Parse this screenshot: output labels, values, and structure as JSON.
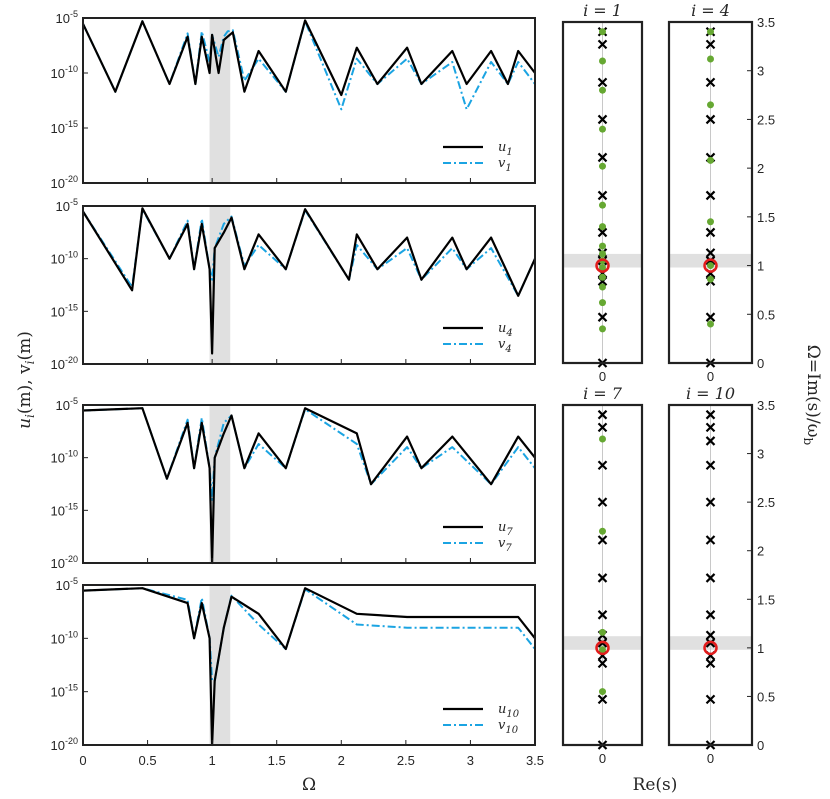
{
  "colors": {
    "u": "#000000",
    "v": "#1ba4e2",
    "shade": "#e0e0e0",
    "pole_x": "#000000",
    "pole_dot": "#66a832",
    "ring": "#e21c1c"
  },
  "chart_data": [
    {
      "type": "line",
      "panel": "u1",
      "x": [
        0,
        0.25,
        0.46,
        0.67,
        0.81,
        0.87,
        0.92,
        0.98,
        1.0,
        1.05,
        1.09,
        1.12,
        1.16,
        1.25,
        1.36,
        1.57,
        1.72,
        2.0,
        2.12,
        2.28,
        2.51,
        2.62,
        2.86,
        2.97,
        3.16,
        3.29,
        3.37,
        3.5
      ],
      "series": [
        {
          "name": "u_1",
          "values": [
            3e-06,
            2e-12,
            5e-06,
            1e-11,
            2e-07,
            1e-11,
            2e-07,
            1e-10,
            3e-07,
            1e-10,
            1e-07,
            2e-07,
            5e-07,
            2e-12,
            1e-08,
            2e-12,
            6e-06,
            1e-12,
            2e-08,
            1e-11,
            2e-08,
            1e-11,
            1e-08,
            1e-11,
            1e-08,
            1e-11,
            1e-08,
            1e-10
          ]
        },
        {
          "name": "v_1",
          "values": [
            3e-06,
            2e-12,
            5e-06,
            1e-11,
            4e-07,
            1e-11,
            6e-07,
            1e-09,
            3e-07,
            3e-09,
            2e-07,
            6e-07,
            8e-07,
            2e-11,
            2e-09,
            2e-12,
            5e-06,
            5e-14,
            2e-09,
            1e-11,
            2e-09,
            1e-11,
            1e-09,
            5e-14,
            1e-09,
            1e-11,
            1e-09,
            1e-11
          ]
        }
      ],
      "ylabel_ticks": [
        "10-5",
        "10-10",
        "10-15",
        "10-20"
      ],
      "legend": [
        "u1",
        "v1"
      ],
      "ylim": [
        1e-20,
        1e-05
      ],
      "log_y": true,
      "shaded_x": [
        0.98,
        1.14
      ]
    },
    {
      "type": "line",
      "panel": "u4",
      "x": [
        0,
        0.38,
        0.46,
        0.67,
        0.81,
        0.86,
        0.92,
        0.98,
        1.0,
        1.02,
        1.09,
        1.15,
        1.25,
        1.36,
        1.57,
        1.72,
        2.06,
        2.12,
        2.28,
        2.51,
        2.62,
        2.86,
        2.97,
        3.16,
        3.37,
        3.5
      ],
      "series": [
        {
          "name": "u_4",
          "values": [
            3e-06,
            1e-13,
            6e-06,
            1e-10,
            2e-07,
            1e-11,
            2e-07,
            1e-11,
            1e-19,
            1e-09,
            3e-08,
            8e-07,
            1e-11,
            2e-08,
            1e-11,
            5e-06,
            1e-12,
            2e-08,
            1e-11,
            1e-08,
            1e-12,
            1e-08,
            1e-11,
            1e-08,
            3e-14,
            1e-10
          ]
        },
        {
          "name": "v_4",
          "values": [
            3e-06,
            2e-13,
            5e-06,
            1e-10,
            4e-07,
            1e-11,
            6e-07,
            1e-11,
            1e-12,
            1e-09,
            2e-07,
            1e-06,
            2e-11,
            2e-09,
            1e-11,
            4e-06,
            1e-12,
            2e-09,
            1e-11,
            1e-09,
            1e-12,
            1e-09,
            1e-11,
            1e-09,
            3e-14,
            1e-10
          ]
        }
      ],
      "ylabel_ticks": [
        "10-5",
        "10-10",
        "10-15",
        "10-20"
      ],
      "legend": [
        "u4",
        "v4"
      ],
      "ylim": [
        1e-20,
        1e-05
      ],
      "log_y": true,
      "shaded_x": [
        0.98,
        1.14
      ]
    },
    {
      "type": "line",
      "panel": "u7",
      "x": [
        0,
        0.46,
        0.65,
        0.81,
        0.86,
        0.92,
        0.98,
        1.0,
        1.02,
        1.09,
        1.15,
        1.25,
        1.36,
        1.57,
        1.72,
        2.12,
        2.23,
        2.51,
        2.62,
        2.86,
        3.16,
        3.37,
        3.5
      ],
      "series": [
        {
          "name": "u_7",
          "values": [
            3e-06,
            5e-06,
            1e-12,
            2e-07,
            1e-11,
            2e-07,
            1e-11,
            1e-20,
            1e-10,
            2e-08,
            1e-06,
            1e-11,
            2e-08,
            1e-11,
            5e-06,
            2e-08,
            3e-13,
            1e-08,
            1e-11,
            1e-08,
            3e-13,
            1e-08,
            1e-10
          ]
        },
        {
          "name": "v_7",
          "values": [
            3e-06,
            5e-06,
            1e-12,
            4e-07,
            1e-11,
            6e-07,
            1e-11,
            1e-14,
            1e-10,
            2e-07,
            1e-06,
            1e-11,
            2e-09,
            1e-11,
            4e-06,
            2e-09,
            3e-13,
            1e-09,
            1e-11,
            1e-09,
            3e-13,
            1e-09,
            1e-11
          ]
        }
      ],
      "ylabel_ticks": [
        "10-5",
        "10-10",
        "10-15",
        "10-20"
      ],
      "legend": [
        "u7",
        "v7"
      ],
      "ylim": [
        1e-20,
        1e-05
      ],
      "log_y": true,
      "shaded_x": [
        0.98,
        1.14
      ]
    },
    {
      "type": "line",
      "panel": "u10",
      "x": [
        0,
        0.46,
        0.81,
        0.86,
        0.92,
        0.98,
        1.0,
        1.02,
        1.09,
        1.15,
        1.36,
        1.57,
        1.72,
        2.12,
        2.51,
        2.86,
        3.16,
        3.37,
        3.5
      ],
      "series": [
        {
          "name": "u_10",
          "values": [
            3e-06,
            5e-06,
            2e-07,
            1e-10,
            2e-07,
            1e-10,
            1e-20,
            1e-14,
            1e-09,
            8e-07,
            2e-08,
            1e-11,
            5e-06,
            2e-08,
            1e-08,
            1e-08,
            1e-08,
            1e-08,
            1e-10
          ]
        },
        {
          "name": "v_10",
          "values": [
            3e-06,
            5e-06,
            4e-07,
            1e-10,
            6e-07,
            1e-10,
            1e-14,
            1e-14,
            1e-09,
            1e-06,
            2e-09,
            1e-11,
            4e-06,
            2e-09,
            1e-09,
            1e-09,
            1e-09,
            1e-09,
            1e-11
          ]
        }
      ],
      "ylabel_ticks": [
        "10-5",
        "10-10",
        "10-15",
        "10-20"
      ],
      "legend": [
        "u10",
        "v10"
      ],
      "ylim": [
        1e-20,
        1e-05
      ],
      "log_y": true,
      "shaded_x": [
        0.98,
        1.14
      ],
      "xticks": [
        "0",
        "0.5",
        "1",
        "1.5",
        "2",
        "2.5",
        "3",
        "3.5"
      ],
      "xlabel": "Ω"
    },
    {
      "type": "scatter",
      "panel": "i1",
      "title": "i = 1",
      "crosses": [
        0.0,
        0.47,
        0.84,
        0.92,
        1.05,
        1.13,
        1.34,
        1.72,
        2.11,
        2.5,
        2.88,
        3.27,
        3.4
      ],
      "dots": [
        0.35,
        0.62,
        0.78,
        0.88,
        0.98,
        1.05,
        1.12,
        1.2,
        1.4,
        1.62,
        2.02,
        2.4,
        2.8,
        3.1,
        3.4
      ],
      "ring": 1.0,
      "shaded_y": [
        0.98,
        1.12
      ],
      "xtick": "0"
    },
    {
      "type": "scatter",
      "panel": "i4",
      "title": "i = 4",
      "crosses": [
        0.0,
        0.47,
        0.84,
        0.92,
        1.05,
        1.13,
        1.34,
        1.72,
        2.11,
        2.5,
        2.88,
        3.27,
        3.4
      ],
      "dots": [
        0.4,
        0.86,
        1.0,
        1.45,
        2.08,
        2.65,
        3.12,
        3.4
      ],
      "ring": 1.0,
      "shaded_y": [
        0.98,
        1.12
      ],
      "xtick": "0"
    },
    {
      "type": "scatter",
      "panel": "i7",
      "title": "i = 7",
      "crosses": [
        0.0,
        0.47,
        0.84,
        0.92,
        1.05,
        1.13,
        1.34,
        1.72,
        2.11,
        2.5,
        2.88,
        3.27,
        3.4
      ],
      "dots": [
        0.55,
        0.98,
        1.16,
        2.2,
        3.15
      ],
      "ring": 1.0,
      "shaded_y": [
        0.98,
        1.12
      ],
      "xtick": "0"
    },
    {
      "type": "scatter",
      "panel": "i10",
      "title": "i = 10",
      "crosses": [
        0.0,
        0.47,
        0.84,
        0.92,
        1.05,
        1.13,
        1.34,
        1.72,
        2.11,
        2.5,
        2.88,
        3.13,
        3.27,
        3.4
      ],
      "dots": [],
      "ring": 1.0,
      "shaded_y": [
        0.98,
        1.12
      ],
      "xtick": "0",
      "xlabel": "Re(s)"
    }
  ],
  "labels": {
    "left_ylabel": "u",
    "left_ylabel_sub": "i",
    "left_ylabel_mid": "(m), v",
    "left_ylabel_sub2": "i",
    "left_ylabel_end": "(m)",
    "right_ylabel": "Ω=Im(s)/ω",
    "right_ylabel_sub": "b",
    "right_yticks": [
      "0",
      "0.5",
      "1",
      "1.5",
      "2",
      "2.5",
      "3",
      "3.5"
    ],
    "xlabel_left": "Ω",
    "xlabel_right": "Re(s)"
  }
}
